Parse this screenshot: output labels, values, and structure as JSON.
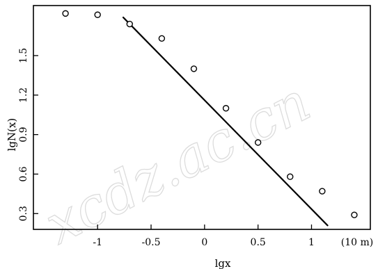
{
  "chart_data": {
    "type": "scatter",
    "xlabel": "lgx",
    "ylabel": "lgN(x)",
    "x_unit_label": "(10 m)",
    "xlim": [
      -1.6,
      1.55
    ],
    "ylim": [
      0.18,
      1.88
    ],
    "xticks": [
      -1,
      -0.5,
      0,
      0.5,
      1
    ],
    "xtick_labels": [
      "-1",
      "-0.5",
      "0",
      "0.5",
      "1"
    ],
    "yticks": [
      0.3,
      0.6,
      0.9,
      1.2,
      1.5
    ],
    "ytick_labels": [
      "0.3",
      "0.6",
      "0.9",
      "1.2",
      "1.5"
    ],
    "grid": false,
    "series": [
      {
        "marker": "circle",
        "x": [
          -1.3,
          -1.0,
          -0.7,
          -0.4,
          -0.1,
          0.2,
          0.5,
          0.8,
          1.1,
          1.4
        ],
        "y": [
          1.82,
          1.81,
          1.74,
          1.63,
          1.4,
          1.1,
          0.84,
          0.58,
          0.47,
          0.29
        ]
      }
    ],
    "fit_line": {
      "x": [
        -0.76,
        1.15
      ],
      "y": [
        1.79,
        0.21
      ]
    }
  },
  "watermark": "xcdz.ac.cn"
}
